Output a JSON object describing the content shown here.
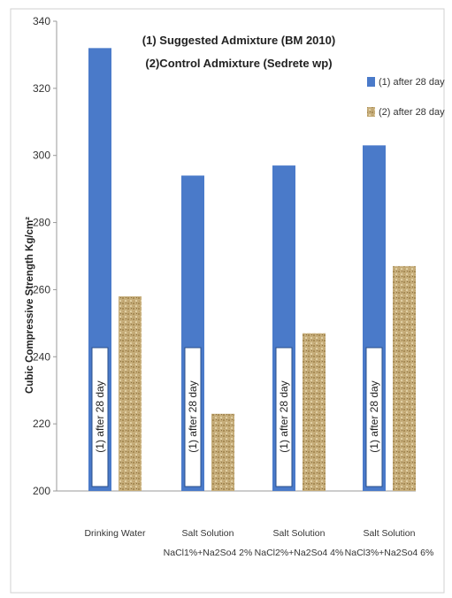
{
  "chart_data": {
    "type": "bar",
    "title_lines": [
      "(1) Suggested Admixture (BM 2010)",
      "(2)Control Admixture (Sedrete wp)"
    ],
    "xlabel": "",
    "ylabel": "Cubic Compressive Strength Kg/cm²",
    "ylim": [
      200,
      340
    ],
    "yticks": [
      200,
      220,
      240,
      260,
      280,
      300,
      320,
      340
    ],
    "categories": [
      [
        "Drinking Water"
      ],
      [
        "Salt Solution",
        "NaCl1%+Na2So4 2%"
      ],
      [
        "Salt Solution",
        "NaCl2%+Na2So4 4%"
      ],
      [
        "Salt Solution",
        "NaCl3%+Na2So4 6%"
      ]
    ],
    "series": [
      {
        "name": "(1) after 28 day",
        "values": [
          332,
          294,
          297,
          303
        ],
        "color": "#4a7ac9"
      },
      {
        "name": "(2) after 28 day",
        "values": [
          258,
          223,
          247,
          267
        ],
        "color": "#c9b27f"
      }
    ],
    "bar_annotation": "(1) after 28 day",
    "legend_position": "right",
    "grid": false
  }
}
